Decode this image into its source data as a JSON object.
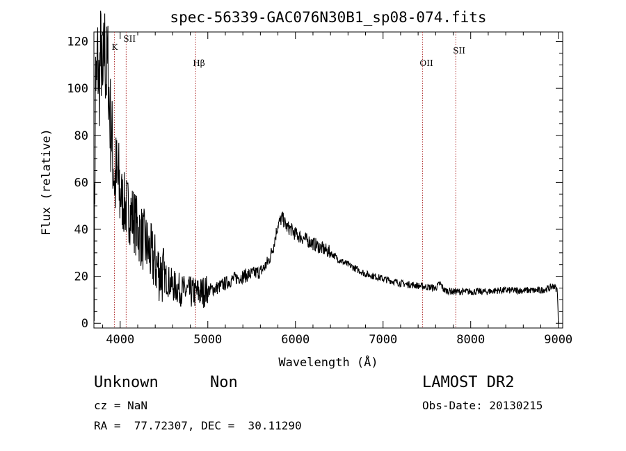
{
  "chart_data": {
    "type": "line",
    "title": "spec-56339-GAC076N30B1_sp08-074.fits",
    "xlabel": "Wavelength (Å)",
    "ylabel": "Flux (relative)",
    "xlim": [
      3700,
      9050
    ],
    "ylim": [
      -2,
      124
    ],
    "xticks": [
      4000,
      5000,
      6000,
      7000,
      8000,
      9000
    ],
    "yticks": [
      0,
      20,
      40,
      60,
      80,
      100,
      120
    ],
    "grid": false,
    "series": [
      {
        "x": [
          3700,
          3710,
          3720,
          3730,
          3740,
          3760,
          3780,
          3800,
          3820,
          3840,
          3860,
          3880,
          3900,
          3920,
          3940,
          3960,
          3980,
          4000,
          4050,
          4100,
          4150,
          4200,
          4300,
          4400,
          4500,
          4600,
          4700,
          4800,
          4900,
          5000,
          5100,
          5200,
          5300,
          5400,
          5500,
          5600,
          5650,
          5700,
          5750,
          5800,
          5850,
          5900,
          5950,
          6000,
          6100,
          6200,
          6300,
          6400,
          6500,
          6600,
          6700,
          6800,
          6900,
          7000,
          7100,
          7200,
          7300,
          7400,
          7500,
          7600,
          7650,
          7700,
          7800,
          7900,
          8000,
          8100,
          8200,
          8300,
          8400,
          8500,
          8600,
          8700,
          8800,
          8900,
          8950,
          8990,
          9000
        ],
        "y": [
          3,
          60,
          112,
          95,
          115,
          100,
          118,
          95,
          120,
          105,
          110,
          90,
          80,
          70,
          60,
          62,
          58,
          55,
          50,
          48,
          45,
          40,
          33,
          25,
          20,
          16,
          14,
          13,
          13,
          14,
          15,
          17,
          19,
          20,
          21,
          22,
          24,
          27,
          33,
          42,
          45,
          41,
          40,
          38,
          36,
          34,
          32,
          30,
          27,
          25,
          23,
          21,
          20,
          19,
          18,
          17,
          16.5,
          16,
          15.5,
          15,
          17,
          14,
          13.5,
          13.5,
          13.5,
          13.5,
          13.5,
          14,
          14,
          14,
          14,
          14,
          14,
          15,
          16,
          14,
          0
        ]
      }
    ],
    "lines": [
      {
        "label": "K",
        "x": 3934
      },
      {
        "label": "SII",
        "x": 4068
      },
      {
        "label": "Hβ",
        "x": 4861
      },
      {
        "label": "OII",
        "x": 7450
      },
      {
        "label": "SII",
        "x": 7830
      }
    ]
  },
  "info": {
    "class": "Unknown",
    "subclass": "Non",
    "survey": "LAMOST DR2",
    "cz": "cz = NaN",
    "obs_date": "Obs-Date: 20130215",
    "coords": "RA =  77.72307, DEC =  30.11290"
  }
}
